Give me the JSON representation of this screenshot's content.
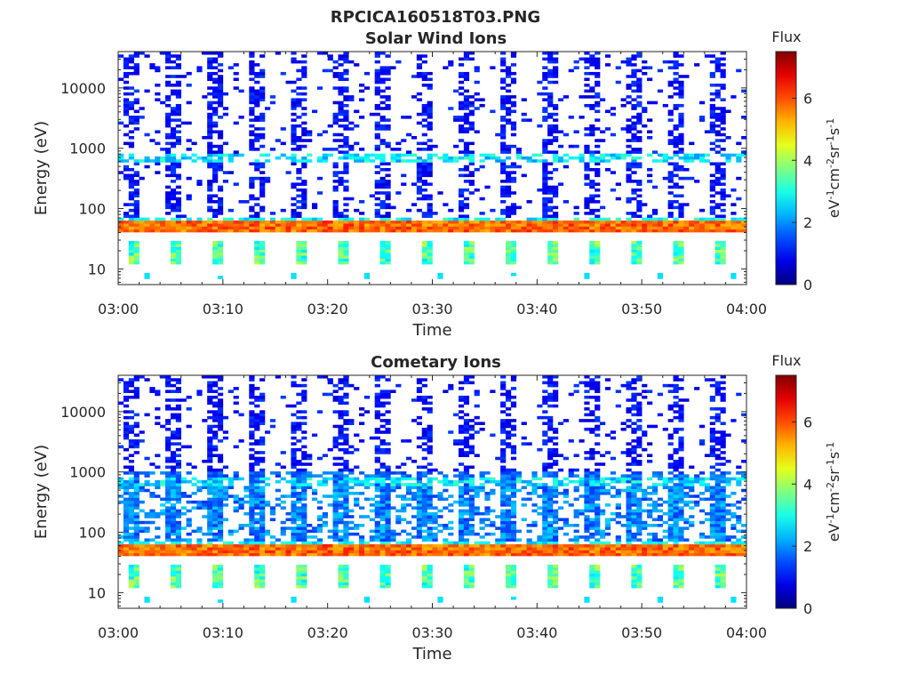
{
  "figure": {
    "title": "RPCICA160518T03.PNG"
  },
  "chart_data": [
    {
      "type": "heatmap",
      "title": "Solar Wind Ions",
      "xlabel": "Time",
      "ylabel": "Energy (eV)",
      "x_ticks": [
        "03:00",
        "03:10",
        "03:20",
        "03:30",
        "03:40",
        "03:50",
        "04:00"
      ],
      "xlim": [
        "03:00",
        "04:00"
      ],
      "y_scale": "log",
      "y_ticks": [
        "10",
        "100",
        "1000",
        "10000"
      ],
      "ylim": [
        5.5,
        40000
      ],
      "colorbar": {
        "label": "Flux",
        "units": "eV-1cm-2sr-1s-1",
        "ticks": [
          "0",
          "2",
          "4",
          "6"
        ],
        "range": [
          0,
          7.5
        ],
        "colormap": "jet"
      },
      "features": [
        {
          "desc": "continuous solar wind band",
          "energy_range": [
            40,
            62
          ],
          "flux": 5.8
        },
        {
          "desc": "secondary band",
          "energy_range": [
            62,
            70
          ],
          "flux": 2.6
        },
        {
          "desc": "periodic low-energy blocks",
          "energy_range": [
            12,
            28
          ],
          "flux": 3.2
        },
        {
          "desc": "periodic high-energy bursts",
          "energy_range": [
            80,
            35000
          ],
          "flux": 1.0
        },
        {
          "desc": "band near 700 eV",
          "energy_range": [
            600,
            800
          ],
          "flux": 2.4
        }
      ]
    },
    {
      "type": "heatmap",
      "title": "Cometary Ions",
      "xlabel": "Time",
      "ylabel": "Energy (eV)",
      "x_ticks": [
        "03:00",
        "03:10",
        "03:20",
        "03:30",
        "03:40",
        "03:50",
        "04:00"
      ],
      "xlim": [
        "03:00",
        "04:00"
      ],
      "y_scale": "log",
      "y_ticks": [
        "10",
        "100",
        "1000",
        "10000"
      ],
      "ylim": [
        5.5,
        40000
      ],
      "colorbar": {
        "label": "Flux",
        "units": "eV-1cm-2sr-1s-1",
        "ticks": [
          "0",
          "2",
          "4",
          "6"
        ],
        "range": [
          0,
          7.5
        ],
        "colormap": "jet"
      },
      "features": [
        {
          "desc": "continuous band",
          "energy_range": [
            40,
            62
          ],
          "flux": 5.8
        },
        {
          "desc": "secondary band",
          "energy_range": [
            62,
            70
          ],
          "flux": 2.6
        },
        {
          "desc": "periodic low-energy blocks",
          "energy_range": [
            12,
            28
          ],
          "flux": 3.2
        },
        {
          "desc": "periodic bursts, elevated below 1000 eV",
          "energy_range": [
            80,
            35000
          ],
          "flux": 1.6
        },
        {
          "desc": "band near 700 eV",
          "energy_range": [
            600,
            800
          ],
          "flux": 2.4
        }
      ]
    }
  ]
}
